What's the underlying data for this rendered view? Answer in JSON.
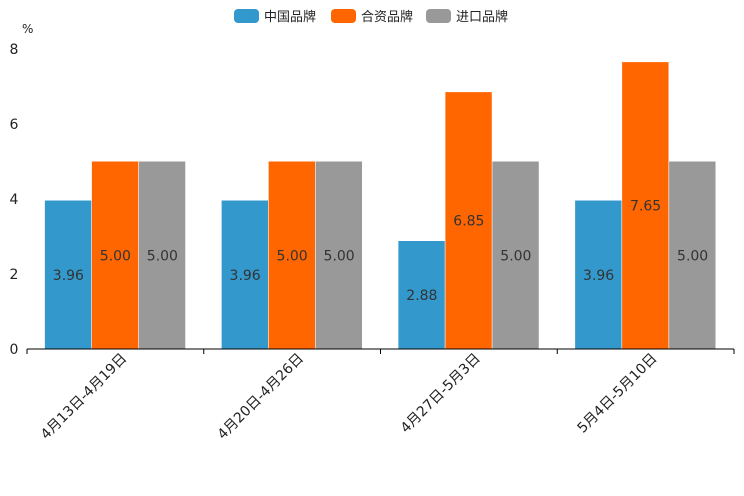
{
  "chart_data": {
    "type": "bar",
    "title": "",
    "ylabel": "%",
    "xlabel": "",
    "ylim": [
      0,
      8
    ],
    "yticks": [
      0,
      2,
      4,
      6,
      8
    ],
    "legend_position": "top-center",
    "categories": [
      "4月13日-4月19日",
      "4月20日-4月26日",
      "4月27日-5月3日",
      "5月4日-5月10日"
    ],
    "series": [
      {
        "name": "中国品牌",
        "color": "#3399CC",
        "values": [
          3.96,
          3.96,
          2.88,
          3.96
        ],
        "labels": [
          "3.96",
          "3.96",
          "2.88",
          "3.96"
        ]
      },
      {
        "name": "合资品牌",
        "color": "#FF6600",
        "values": [
          5.0,
          5.0,
          6.85,
          7.65
        ],
        "labels": [
          "5.00",
          "5.00",
          "6.85",
          "7.65"
        ]
      },
      {
        "name": "进口品牌",
        "color": "#999999",
        "values": [
          5.0,
          5.0,
          5.0,
          5.0
        ],
        "labels": [
          "5.00",
          "5.00",
          "5.00",
          "5.00"
        ]
      }
    ]
  }
}
